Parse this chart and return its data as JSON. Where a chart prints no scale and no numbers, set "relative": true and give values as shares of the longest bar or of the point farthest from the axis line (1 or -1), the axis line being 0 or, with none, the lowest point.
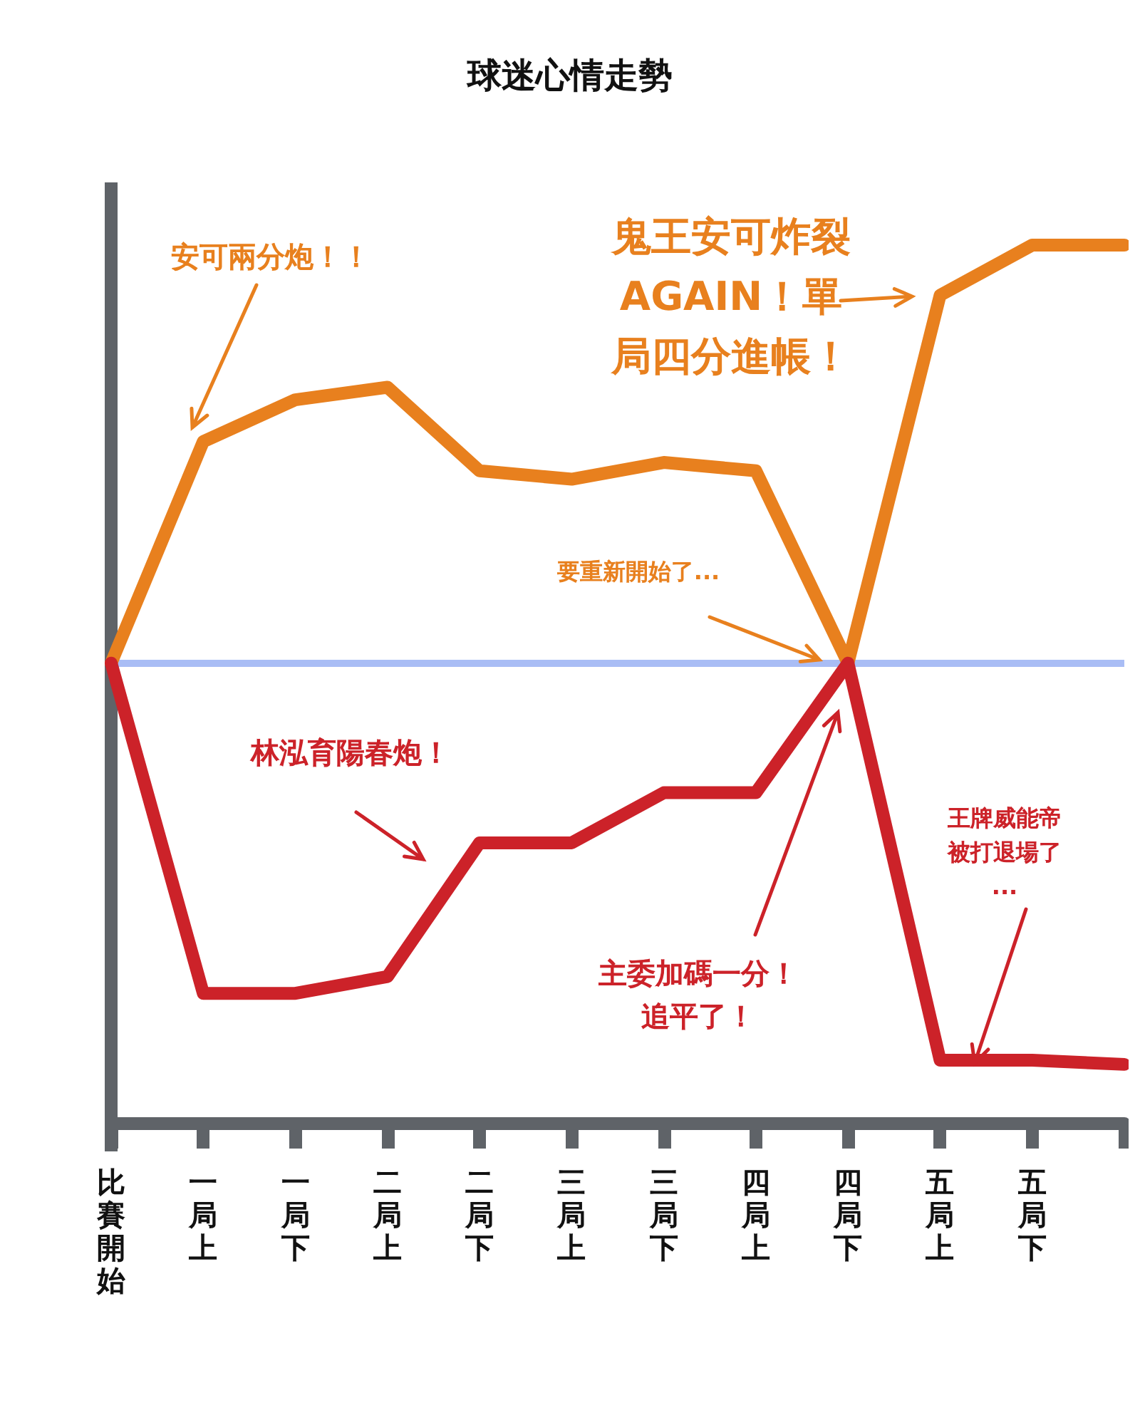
{
  "chart_data": {
    "type": "line",
    "title": "球迷心情走勢",
    "relative": true,
    "categories": [
      "比賽開始",
      "一局上",
      "一局下",
      "二局上",
      "二局下",
      "三局上",
      "三局下",
      "四局上",
      "四局下",
      "五局上",
      "五局下",
      null
    ],
    "series": [
      {
        "color": "#e8801e",
        "values": [
          0,
          0.53,
          0.63,
          0.66,
          0.46,
          0.44,
          0.48,
          0.46,
          0,
          0.88,
          1,
          1
        ]
      },
      {
        "color": "#cc2229",
        "values": [
          0,
          -0.79,
          -0.79,
          -0.75,
          -0.43,
          -0.43,
          -0.31,
          -0.31,
          0,
          -0.95,
          -0.95,
          -0.96
        ]
      }
    ],
    "ref_lines": [
      {
        "axis": "y",
        "value": 0,
        "color": "#a9bdf5"
      }
    ],
    "annotations": [
      "安可兩分炮！！",
      "鬼王安可炸裂AGAIN！單局四分進帳！",
      "要重新開始了...",
      "林泓育陽春炮！",
      "主委加碼一分！追平了！",
      "王牌威能帝被打退場了..."
    ],
    "marker": "none",
    "line_style": "solid",
    "grid": false
  }
}
